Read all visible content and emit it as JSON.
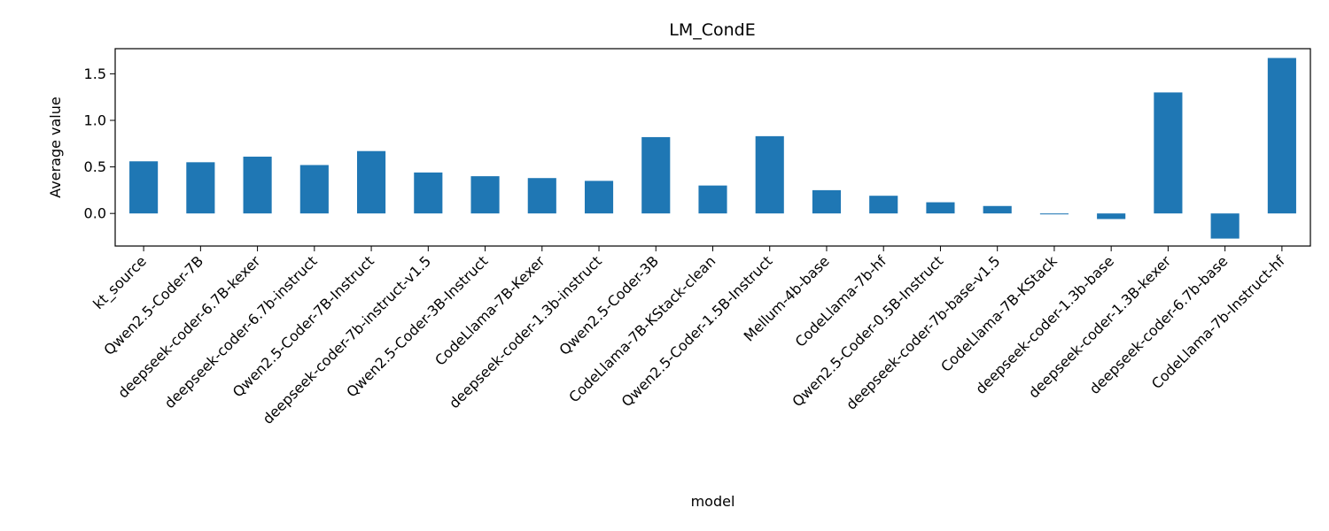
{
  "chart_data": {
    "type": "bar",
    "title": "LM_CondE",
    "xlabel": "model",
    "ylabel": "Average value",
    "ylim": [
      -0.35,
      1.77
    ],
    "yticks": [
      0.0,
      0.5,
      1.0,
      1.5
    ],
    "ytick_labels": [
      "0.0",
      "0.5",
      "1.0",
      "1.5"
    ],
    "grid": false,
    "bar_color": "#1f77b4",
    "categories": [
      "kt_source",
      "Qwen2.5-Coder-7B",
      "deepseek-coder-6.7B-kexer",
      "deepseek-coder-6.7b-instruct",
      "Qwen2.5-Coder-7B-Instruct",
      "deepseek-coder-7b-instruct-v1.5",
      "Qwen2.5-Coder-3B-Instruct",
      "CodeLlama-7B-Kexer",
      "deepseek-coder-1.3b-instruct",
      "Qwen2.5-Coder-3B",
      "CodeLlama-7B-KStack-clean",
      "Qwen2.5-Coder-1.5B-Instruct",
      "Mellum-4b-base",
      "CodeLlama-7b-hf",
      "Qwen2.5-Coder-0.5B-Instruct",
      "deepseek-coder-7b-base-v1.5",
      "CodeLlama-7B-KStack",
      "deepseek-coder-1.3b-base",
      "deepseek-coder-1.3B-kexer",
      "deepseek-coder-6.7b-base",
      "CodeLlama-7b-Instruct-hf"
    ],
    "values": [
      0.56,
      0.55,
      0.61,
      0.52,
      0.67,
      0.44,
      0.4,
      0.38,
      0.35,
      0.82,
      0.3,
      0.83,
      0.25,
      0.19,
      0.12,
      0.08,
      -0.01,
      -0.06,
      1.3,
      -0.27,
      1.67
    ]
  }
}
